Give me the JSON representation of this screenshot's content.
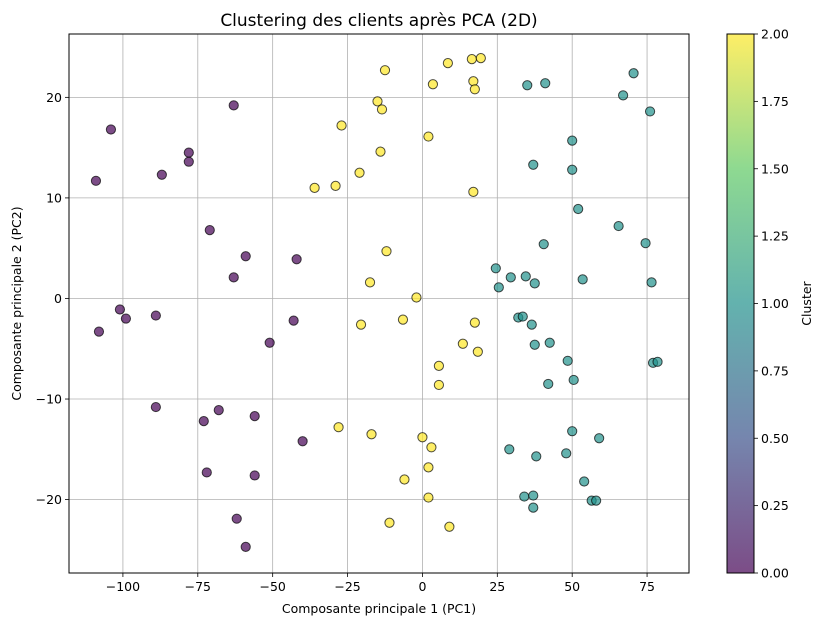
{
  "chart_data": {
    "type": "scatter",
    "title": "Clustering des clients après PCA (2D)",
    "xlabel": "Composante principale 1 (PC1)",
    "ylabel": "Composante principale 2 (PC2)",
    "xlim": [
      -118,
      89
    ],
    "ylim": [
      -27.3,
      26.3
    ],
    "xticks": [
      -100,
      -75,
      -50,
      -25,
      0,
      25,
      50,
      75
    ],
    "xtick_labels": [
      "−100",
      "−75",
      "−50",
      "−25",
      "0",
      "25",
      "50",
      "75"
    ],
    "yticks": [
      -20,
      -10,
      0,
      10,
      20
    ],
    "ytick_labels": [
      "−20",
      "−10",
      "0",
      "10",
      "20"
    ],
    "grid": true,
    "colorbar": {
      "label": "Cluster",
      "range": [
        0,
        2
      ],
      "ticks": [
        0,
        0.25,
        0.5,
        0.75,
        1,
        1.25,
        1.5,
        1.75,
        2
      ],
      "tick_labels": [
        "0.00",
        "0.25",
        "0.50",
        "0.75",
        "1.00",
        "1.25",
        "1.50",
        "1.75",
        "2.00"
      ],
      "stops": [
        "#440154",
        "#3b528b",
        "#21918c",
        "#5ec962",
        "#fde725"
      ]
    },
    "colors": {
      "cluster_0": "#440154",
      "cluster_1": "#21918c",
      "cluster_2": "#fde725"
    },
    "series": [
      {
        "cluster": 0,
        "points": [
          [
            -104,
            16.8
          ],
          [
            -109,
            11.7
          ],
          [
            -78,
            14.5
          ],
          [
            -78,
            13.6
          ],
          [
            -87,
            12.3
          ],
          [
            -63,
            19.2
          ],
          [
            -71,
            6.8
          ],
          [
            -59,
            4.2
          ],
          [
            -63,
            2.1
          ],
          [
            -42,
            3.9
          ],
          [
            -101,
            -1.1
          ],
          [
            -99,
            -2
          ],
          [
            -108,
            -3.3
          ],
          [
            -89,
            -1.7
          ],
          [
            -43,
            -2.2
          ],
          [
            -51,
            -4.4
          ],
          [
            -89,
            -10.8
          ],
          [
            -68,
            -11.1
          ],
          [
            -73,
            -12.2
          ],
          [
            -56,
            -11.7
          ],
          [
            -40,
            -14.2
          ],
          [
            -72,
            -17.3
          ],
          [
            -56,
            -17.6
          ],
          [
            -62,
            -21.9
          ],
          [
            -59,
            -24.7
          ]
        ]
      },
      {
        "cluster": 1,
        "points": [
          [
            70.5,
            22.4
          ],
          [
            35,
            21.2
          ],
          [
            41,
            21.4
          ],
          [
            67,
            20.2
          ],
          [
            76,
            18.6
          ],
          [
            50,
            15.7
          ],
          [
            37,
            13.3
          ],
          [
            50,
            12.8
          ],
          [
            52,
            8.9
          ],
          [
            65.5,
            7.2
          ],
          [
            74.5,
            5.5
          ],
          [
            40.5,
            5.4
          ],
          [
            24.5,
            3
          ],
          [
            29.5,
            2.1
          ],
          [
            34.5,
            2.2
          ],
          [
            53.5,
            1.9
          ],
          [
            37.5,
            1.5
          ],
          [
            76.5,
            1.6
          ],
          [
            25.5,
            1.1
          ],
          [
            32,
            -1.9
          ],
          [
            33.5,
            -1.8
          ],
          [
            36.5,
            -2.6
          ],
          [
            42.5,
            -4.4
          ],
          [
            37.5,
            -4.6
          ],
          [
            48.5,
            -6.2
          ],
          [
            77,
            -6.4
          ],
          [
            78.5,
            -6.3
          ],
          [
            50.5,
            -8.1
          ],
          [
            42,
            -8.5
          ],
          [
            50,
            -13.2
          ],
          [
            59,
            -13.9
          ],
          [
            29,
            -15
          ],
          [
            38,
            -15.7
          ],
          [
            48,
            -15.4
          ],
          [
            54,
            -18.2
          ],
          [
            34,
            -19.7
          ],
          [
            37,
            -19.6
          ],
          [
            56.5,
            -20.1
          ],
          [
            58,
            -20.1
          ],
          [
            37,
            -20.8
          ]
        ]
      },
      {
        "cluster": 2,
        "points": [
          [
            16.5,
            23.8
          ],
          [
            19.5,
            23.9
          ],
          [
            8.5,
            23.4
          ],
          [
            -12.5,
            22.7
          ],
          [
            17,
            21.6
          ],
          [
            3.5,
            21.3
          ],
          [
            17.5,
            20.8
          ],
          [
            -15,
            19.6
          ],
          [
            -13.5,
            18.8
          ],
          [
            -27,
            17.2
          ],
          [
            2,
            16.1
          ],
          [
            -14,
            14.6
          ],
          [
            -21,
            12.5
          ],
          [
            -29,
            11.2
          ],
          [
            -36,
            11
          ],
          [
            17,
            10.6
          ],
          [
            -12,
            4.7
          ],
          [
            -17.5,
            1.6
          ],
          [
            -2,
            0.1
          ],
          [
            -6.5,
            -2.1
          ],
          [
            -20.5,
            -2.6
          ],
          [
            17.5,
            -2.4
          ],
          [
            13.5,
            -4.5
          ],
          [
            18.5,
            -5.3
          ],
          [
            5.5,
            -6.7
          ],
          [
            5.5,
            -8.6
          ],
          [
            -28,
            -12.8
          ],
          [
            -17,
            -13.5
          ],
          [
            0,
            -13.8
          ],
          [
            3,
            -14.8
          ],
          [
            2,
            -16.8
          ],
          [
            -6,
            -18
          ],
          [
            2,
            -19.8
          ],
          [
            -11,
            -22.3
          ],
          [
            9,
            -22.7
          ]
        ]
      }
    ]
  }
}
